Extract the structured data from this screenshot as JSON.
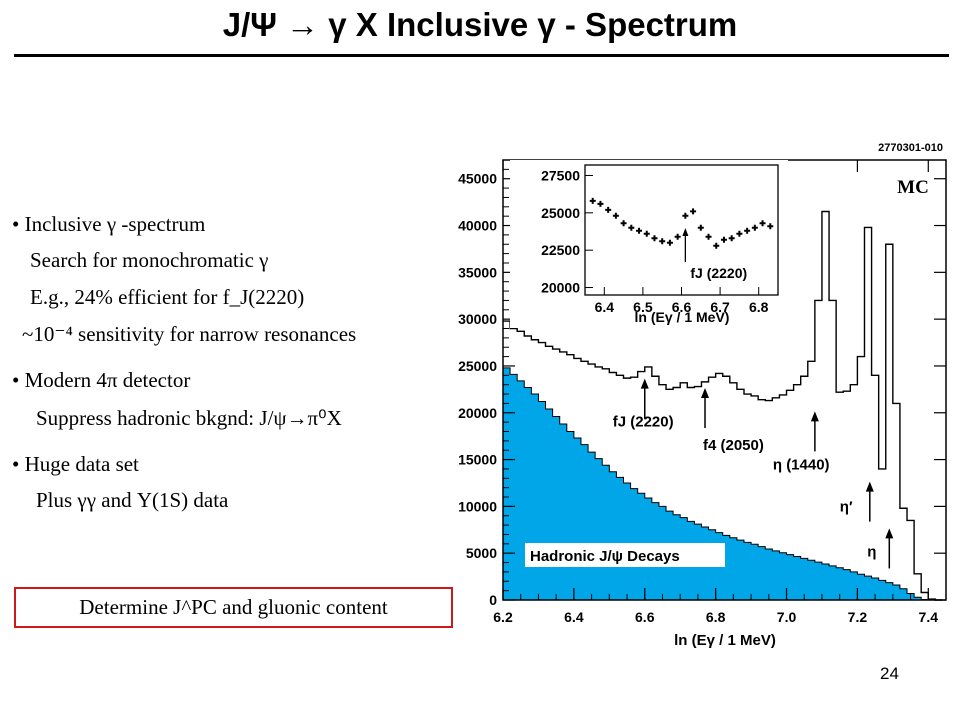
{
  "title": "J/Ψ → γ X Inclusive γ - Spectrum",
  "bullets": [
    "• Inclusive γ -spectrum",
    "Search for monochromatic γ",
    "E.g., 24% efficient for f_J(2220)",
    "~10⁻⁴ sensitivity for narrow resonances",
    "• Modern 4π detector",
    "Suppress hadronic bkgnd: J/ψ→π⁰X",
    "• Huge data set",
    "Plus γγ and Υ(1S) data"
  ],
  "box_text": "Determine J^PC and gluonic content",
  "page_number": "24",
  "colors": {
    "fill": "#00a6e8",
    "box_border": "#cc1a1a"
  },
  "chart_data": [
    {
      "type": "line",
      "figure_id": "2770301-010",
      "mc_label": "MC",
      "xlabel": "ln (Eγ / 1 MeV)",
      "ylabel": "",
      "xlim": [
        6.2,
        7.45
      ],
      "ylim": [
        0,
        47000
      ],
      "xticks": [
        "6.2",
        "6.4",
        "6.6",
        "6.8",
        "7.0",
        "7.2",
        "7.4"
      ],
      "yticks": [
        "0",
        "5000",
        "10000",
        "15000",
        "20000",
        "25000",
        "30000",
        "35000",
        "40000",
        "45000"
      ],
      "x": [
        6.2,
        6.22,
        6.24,
        6.26,
        6.28,
        6.3,
        6.32,
        6.34,
        6.36,
        6.38,
        6.4,
        6.42,
        6.44,
        6.46,
        6.48,
        6.5,
        6.52,
        6.54,
        6.56,
        6.58,
        6.6,
        6.62,
        6.64,
        6.66,
        6.68,
        6.7,
        6.72,
        6.74,
        6.76,
        6.78,
        6.8,
        6.82,
        6.84,
        6.86,
        6.88,
        6.9,
        6.92,
        6.94,
        6.96,
        6.98,
        7.0,
        7.02,
        7.04,
        7.06,
        7.08,
        7.1,
        7.12,
        7.14,
        7.16,
        7.18,
        7.2,
        7.22,
        7.24,
        7.26,
        7.28,
        7.3,
        7.32,
        7.34,
        7.36,
        7.38,
        7.4,
        7.42
      ],
      "series": [
        {
          "name": "",
          "values": [
            29800,
            29000,
            28700,
            28200,
            27800,
            27500,
            27100,
            26800,
            26500,
            26200,
            25800,
            25500,
            25200,
            24900,
            24700,
            24300,
            24000,
            23700,
            23800,
            24400,
            24900,
            23900,
            23000,
            22500,
            22700,
            23200,
            22700,
            22800,
            23300,
            23800,
            24200,
            23900,
            23200,
            22500,
            22000,
            21800,
            21400,
            21300,
            21600,
            21900,
            22400,
            23000,
            23900,
            25500,
            32000,
            41500,
            32000,
            22200,
            22300,
            23000,
            26000,
            39800,
            24000,
            14000,
            38000,
            21000,
            9800,
            8500,
            2800,
            800,
            100,
            0
          ]
        },
        {
          "name": "Hadronic J/ψ Decays",
          "values": [
            24800,
            24100,
            23400,
            22700,
            22000,
            21200,
            20400,
            19600,
            18800,
            18000,
            17300,
            16600,
            15800,
            15100,
            14400,
            13700,
            13100,
            12500,
            11900,
            11400,
            10900,
            10400,
            10000,
            9500,
            9100,
            8800,
            8400,
            8100,
            7800,
            7500,
            7200,
            6900,
            6650,
            6400,
            6150,
            5950,
            5700,
            5450,
            5250,
            5050,
            4850,
            4650,
            4450,
            4250,
            4050,
            3850,
            3650,
            3450,
            3250,
            3000,
            2750,
            2550,
            2350,
            2100,
            1850,
            1600,
            1200,
            700,
            300,
            60,
            0,
            0
          ]
        }
      ],
      "annotations": [
        {
          "text": "fJ (2220)",
          "x": 6.6,
          "arrow_y": 24500
        },
        {
          "text": "f4 (2050)",
          "x": 6.77,
          "arrow_y": 23500
        },
        {
          "text": "η (1440)",
          "x": 7.08,
          "arrow_y": 21000
        },
        {
          "text": "η′",
          "x": 7.235,
          "arrow_y": 13500
        },
        {
          "text": "η",
          "x": 7.29,
          "arrow_y": 8500
        }
      ]
    },
    {
      "type": "scatter",
      "note_label": "inset",
      "xlabel": "ln (Eγ / 1 MeV)",
      "xlim": [
        6.35,
        6.85
      ],
      "ylim": [
        19500,
        28200
      ],
      "xticks": [
        "6.4",
        "6.5",
        "6.6",
        "6.7",
        "6.8"
      ],
      "yticks": [
        "20000",
        "22500",
        "25000",
        "27500"
      ],
      "x": [
        6.37,
        6.39,
        6.41,
        6.43,
        6.45,
        6.47,
        6.49,
        6.51,
        6.53,
        6.55,
        6.57,
        6.59,
        6.61,
        6.63,
        6.65,
        6.67,
        6.69,
        6.71,
        6.73,
        6.75,
        6.77,
        6.79,
        6.81,
        6.83
      ],
      "y": [
        25800,
        25600,
        25200,
        24800,
        24300,
        24000,
        23800,
        23600,
        23300,
        23100,
        23000,
        23400,
        24800,
        25100,
        24000,
        23400,
        22800,
        23200,
        23300,
        23600,
        23800,
        24000,
        24300,
        24100
      ],
      "annotation": {
        "text": "fJ (2220)",
        "x": 6.61
      }
    }
  ]
}
